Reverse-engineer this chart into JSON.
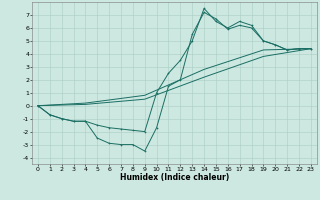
{
  "title": "",
  "xlabel": "Humidex (Indice chaleur)",
  "bg_color": "#cce8e0",
  "grid_color": "#aaccc4",
  "line_color": "#1a6e64",
  "xlim": [
    -0.5,
    23.5
  ],
  "ylim": [
    -4.5,
    8.0
  ],
  "xticks": [
    0,
    1,
    2,
    3,
    4,
    5,
    6,
    7,
    8,
    9,
    10,
    11,
    12,
    13,
    14,
    15,
    16,
    17,
    18,
    19,
    20,
    21,
    22,
    23
  ],
  "yticks": [
    -4,
    -3,
    -2,
    -1,
    0,
    1,
    2,
    3,
    4,
    5,
    6,
    7
  ],
  "s1x": [
    0,
    1,
    2,
    3,
    4,
    5,
    6,
    7,
    8,
    9,
    10,
    11,
    12,
    13,
    14,
    15,
    16,
    17,
    18,
    19,
    20,
    21,
    22,
    23
  ],
  "s1y": [
    0,
    -0.7,
    -1.0,
    -1.2,
    -1.2,
    -2.5,
    -2.9,
    -3.0,
    -3.0,
    -3.5,
    -1.7,
    1.5,
    2.0,
    5.5,
    7.2,
    6.7,
    5.9,
    6.2,
    6.0,
    5.0,
    4.7,
    4.3,
    4.4,
    4.4
  ],
  "s2x": [
    0,
    1,
    2,
    3,
    4,
    5,
    6,
    7,
    8,
    9,
    10,
    11,
    12,
    13,
    14,
    15,
    16,
    17,
    18,
    19,
    20,
    21,
    22,
    23
  ],
  "s2y": [
    0,
    -0.7,
    -1.0,
    -1.2,
    -1.2,
    -1.5,
    -1.7,
    -1.8,
    -1.9,
    -2.0,
    1.0,
    2.5,
    3.5,
    5.0,
    7.5,
    6.5,
    6.0,
    6.5,
    6.2,
    5.0,
    4.7,
    4.3,
    4.4,
    4.4
  ],
  "s3x": [
    0,
    4,
    9,
    14,
    19,
    23
  ],
  "s3y": [
    0,
    0.2,
    0.8,
    2.8,
    4.3,
    4.4
  ],
  "s4x": [
    0,
    4,
    9,
    14,
    19,
    23
  ],
  "s4y": [
    0,
    0.1,
    0.5,
    2.2,
    3.8,
    4.4
  ],
  "lw": 0.7,
  "ms": 2.5,
  "xlabel_fontsize": 5.5,
  "tick_fontsize": 4.5
}
